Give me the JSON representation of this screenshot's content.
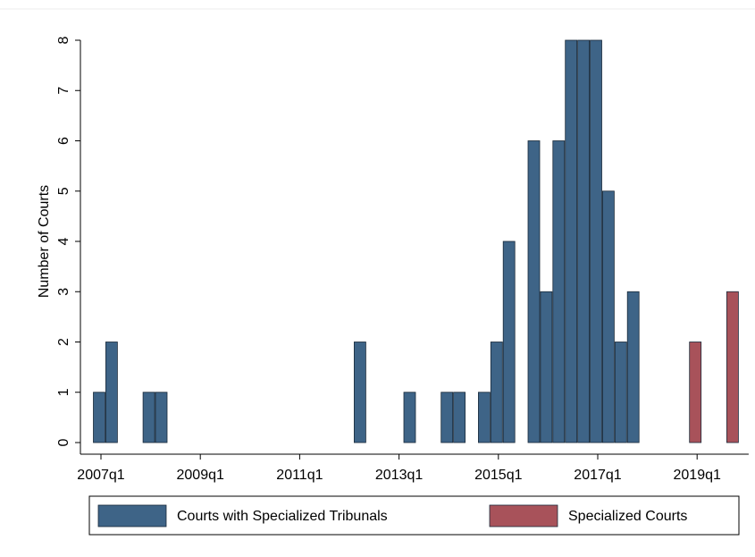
{
  "chart_data": {
    "type": "bar",
    "y_label": "Number of Courts",
    "categories": [
      "2007q1",
      null,
      null,
      null,
      null,
      null,
      null,
      null,
      "2009q1",
      null,
      null,
      null,
      null,
      null,
      null,
      null,
      "2011q1",
      null,
      null,
      null,
      null,
      null,
      null,
      null,
      "2013q1",
      null,
      null,
      null,
      null,
      null,
      null,
      null,
      "2015q1",
      null,
      null,
      null,
      null,
      null,
      null,
      null,
      "2017q1",
      null,
      null,
      null,
      null,
      null,
      null,
      null,
      "2019q1",
      null,
      null,
      null
    ],
    "series": [
      {
        "name": "Courts with Specialized Tribunals",
        "color": "#3e6487",
        "values": [
          1,
          2,
          null,
          null,
          1,
          1,
          null,
          null,
          null,
          null,
          null,
          null,
          null,
          null,
          null,
          null,
          null,
          null,
          null,
          null,
          null,
          2,
          null,
          null,
          null,
          1,
          null,
          null,
          1,
          1,
          null,
          1,
          2,
          4,
          null,
          6,
          3,
          6,
          8,
          8,
          8,
          5,
          2,
          3,
          null,
          null,
          null,
          null,
          null,
          null,
          null,
          null
        ]
      },
      {
        "name": "Specialized Courts",
        "color": "#a8525a",
        "values": [
          null,
          null,
          null,
          null,
          null,
          null,
          null,
          null,
          null,
          null,
          null,
          null,
          null,
          null,
          null,
          null,
          null,
          null,
          null,
          null,
          null,
          null,
          null,
          null,
          null,
          null,
          null,
          null,
          null,
          null,
          null,
          null,
          null,
          null,
          null,
          null,
          null,
          null,
          null,
          null,
          null,
          null,
          null,
          null,
          null,
          null,
          null,
          null,
          2,
          null,
          null,
          3
        ]
      }
    ],
    "ylim": [
      0,
      8
    ],
    "yticks": [
      0,
      1,
      2,
      3,
      4,
      5,
      6,
      7,
      8
    ],
    "grid": false
  }
}
